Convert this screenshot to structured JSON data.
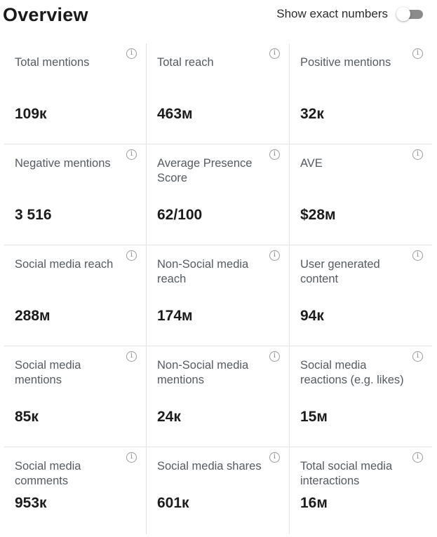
{
  "header": {
    "title": "Overview",
    "toggle_label": "Show exact numbers",
    "toggle_on": false
  },
  "metrics": [
    {
      "label": "Total mentions",
      "value": "109к"
    },
    {
      "label": "Total reach",
      "value": "463м"
    },
    {
      "label": "Positive mentions",
      "value": "32к"
    },
    {
      "label": "Negative mentions",
      "value": "3 516"
    },
    {
      "label": "Average Presence Score",
      "value": "62/100"
    },
    {
      "label": "AVE",
      "value": "$28м"
    },
    {
      "label": "Social media reach",
      "value": "288м"
    },
    {
      "label": "Non-Social media reach",
      "value": "174м"
    },
    {
      "label": "User generated content",
      "value": "94к"
    },
    {
      "label": "Social media mentions",
      "value": "85к"
    },
    {
      "label": "Non-Social media mentions",
      "value": "24к"
    },
    {
      "label": "Social media reactions (e.g. likes)",
      "value": "15м"
    },
    {
      "label": "Social media comments",
      "value": "953к"
    },
    {
      "label": "Social media shares",
      "value": "601к"
    },
    {
      "label": "Total social media interactions",
      "value": "16м"
    }
  ],
  "icons": {
    "info": "info-icon",
    "info_glyph": "i"
  }
}
